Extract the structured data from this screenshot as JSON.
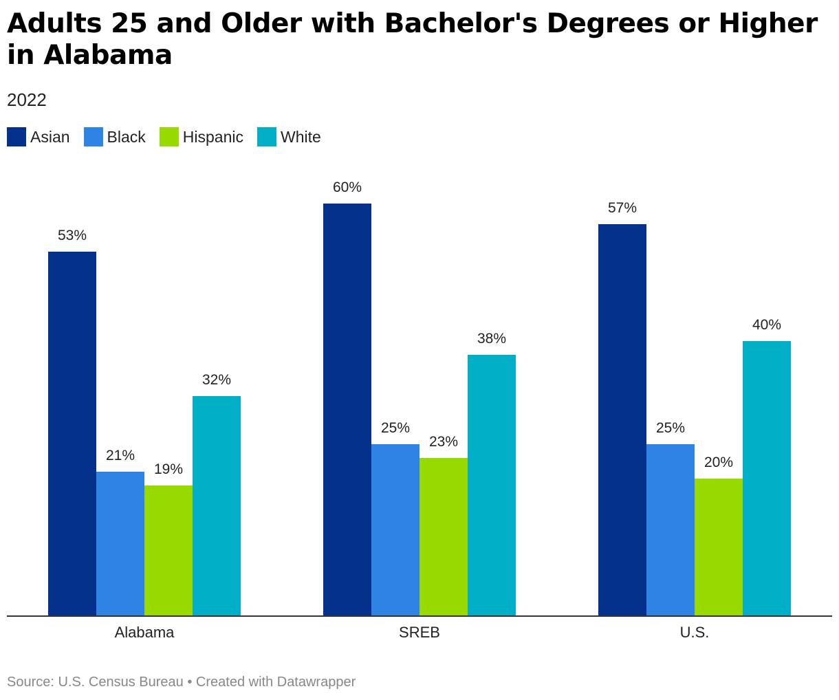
{
  "title": "Adults 25 and Older with Bachelor's Degrees or Higher in Alabama",
  "subtitle": "2022",
  "footer": "Source: U.S. Census Bureau • Created with Datawrapper",
  "colors": {
    "Asian": "#03318c",
    "Black": "#2f83e4",
    "Hispanic": "#98d900",
    "White": "#00aec6"
  },
  "chart_data": {
    "type": "bar",
    "categories": [
      "Alabama",
      "SREB",
      "U.S."
    ],
    "series": [
      {
        "name": "Asian",
        "values": [
          53,
          60,
          57
        ],
        "labels": [
          "53%",
          "60%",
          "57%"
        ]
      },
      {
        "name": "Black",
        "values": [
          21,
          25,
          25
        ],
        "labels": [
          "21%",
          "25%",
          "25%"
        ]
      },
      {
        "name": "Hispanic",
        "values": [
          19,
          23,
          20
        ],
        "labels": [
          "19%",
          "23%",
          "20%"
        ]
      },
      {
        "name": "White",
        "values": [
          32,
          38,
          40
        ],
        "labels": [
          "32%",
          "38%",
          "40%"
        ]
      }
    ],
    "legend": [
      "Asian",
      "Black",
      "Hispanic",
      "White"
    ],
    "ylim": [
      0,
      60
    ],
    "xlabel": "",
    "ylabel": "",
    "legend_position": "top-left",
    "grid": false
  }
}
